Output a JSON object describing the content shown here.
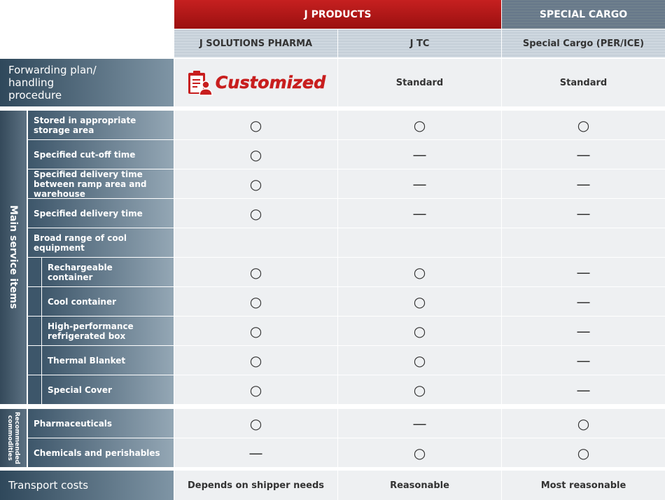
{
  "header": {
    "groups": [
      "J PRODUCTS",
      "SPECIAL CARGO"
    ],
    "columns": [
      "J SOLUTIONS PHARMA",
      "J TC",
      "Special Cargo (PER/ICE)"
    ]
  },
  "plan": {
    "label": "Forwarding plan/ handling procedure",
    "values": [
      "Customized",
      "Standard",
      "Standard"
    ]
  },
  "main": {
    "label": "Main service items",
    "rows": [
      {
        "label": "Stored in appropriate storage area",
        "values": [
          "○",
          "○",
          "○"
        ]
      },
      {
        "label": "Specified cut-off time",
        "values": [
          "○",
          "—",
          "—"
        ]
      },
      {
        "label": "Specified delivery time between ramp area and warehouse",
        "values": [
          "○",
          "—",
          "—"
        ]
      },
      {
        "label": "Specified delivery time",
        "values": [
          "○",
          "—",
          "—"
        ]
      },
      {
        "label": "Broad range of cool equipment",
        "items": [
          {
            "label": "Rechargeable container",
            "values": [
              "○",
              "○",
              "—"
            ]
          },
          {
            "label": "Cool container",
            "values": [
              "○",
              "○",
              "—"
            ]
          },
          {
            "label": "High-performance refrigerated box",
            "values": [
              "○",
              "○",
              "—"
            ]
          },
          {
            "label": "Thermal Blanket",
            "values": [
              "○",
              "○",
              "—"
            ]
          },
          {
            "label": "Special Cover",
            "values": [
              "○",
              "○",
              "—"
            ]
          }
        ]
      }
    ]
  },
  "recommended": {
    "label": "Recommended commodities",
    "rows": [
      {
        "label": "Pharmaceuticals",
        "values": [
          "○",
          "—",
          "○"
        ]
      },
      {
        "label": "Chemicals and perishables",
        "values": [
          "—",
          "○",
          "○"
        ]
      }
    ]
  },
  "costs": {
    "label": "Transport costs",
    "values": [
      "Depends on shipper needs",
      "Reasonable",
      "Most reasonable"
    ]
  }
}
